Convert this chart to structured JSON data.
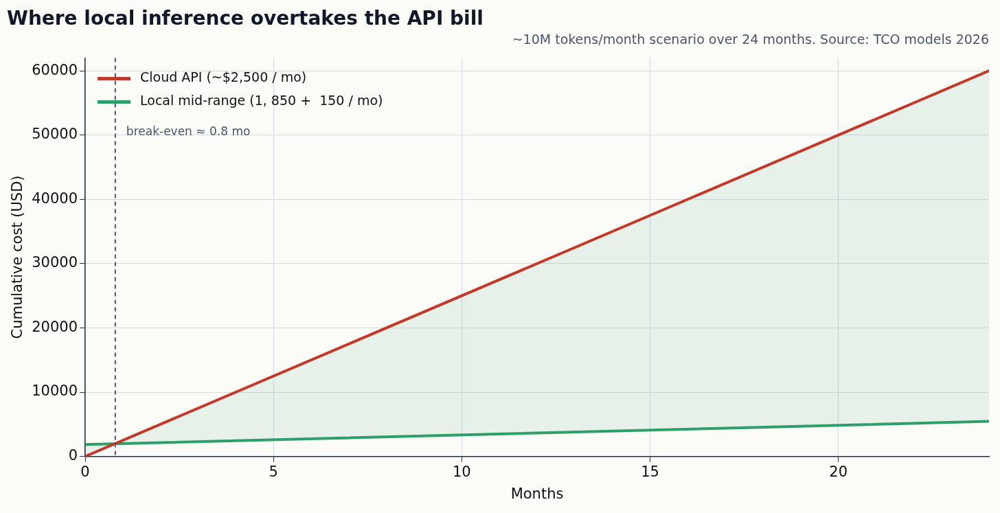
{
  "chart_data": {
    "type": "line",
    "title": "Where local inference overtakes the API bill",
    "subtitle": "~10M tokens/month scenario over 24 months. Source: TCO models 2026",
    "xlabel": "Months",
    "ylabel": "Cumulative cost (USD)",
    "x": [
      0,
      24
    ],
    "series": [
      {
        "name": "Cloud API (~$2,500 / mo)",
        "color": "#c0392b",
        "values": [
          0,
          60000
        ],
        "lower": [
          1850,
          5450
        ],
        "upper": [
          0,
          60000
        ]
      },
      {
        "name": "Local mid-range (1, 850 +  150 / mo)",
        "color": "#2e9e6b",
        "values": [
          1850,
          5450
        ]
      }
    ],
    "xlim": [
      0,
      24
    ],
    "xticks": [
      0,
      5,
      10,
      15,
      20
    ],
    "ylim": [
      0,
      62000
    ],
    "yticks": [
      0,
      10000,
      20000,
      30000,
      40000,
      50000,
      60000
    ],
    "ref_lines": [
      {
        "axis": "x",
        "value": 0.8,
        "label": "break-even ≈ 0.8 mo",
        "color": "#4a5568",
        "line_style": "dashed"
      }
    ],
    "grid": true,
    "legend": "top left",
    "marker": "none",
    "line_style": "solid"
  }
}
